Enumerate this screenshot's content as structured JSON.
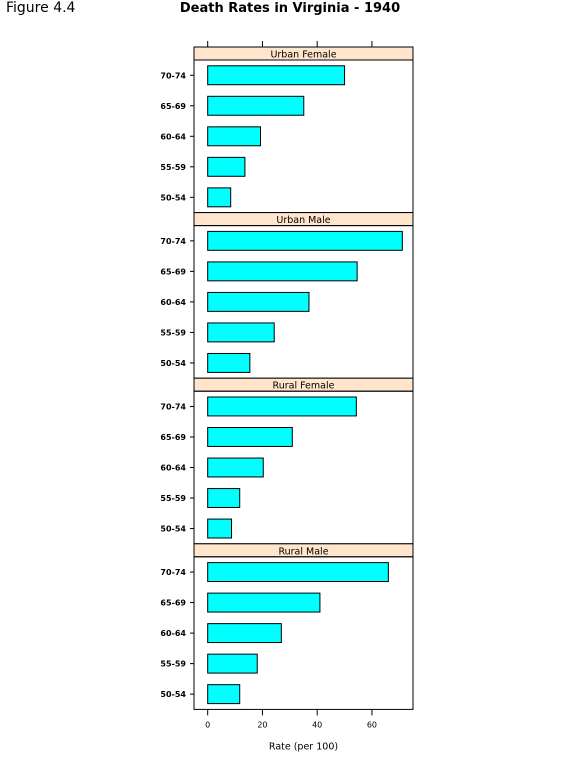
{
  "figure_label": "Figure 4.4",
  "chart_data": {
    "type": "bar",
    "orientation": "horizontal",
    "title": "Death Rates in Virginia - 1940",
    "xlabel": "Rate (per 100)",
    "ylabel": "",
    "xlim": [
      -5,
      75
    ],
    "x_ticks": [
      0,
      20,
      40,
      60
    ],
    "categories": [
      "50-54",
      "55-59",
      "60-64",
      "65-69",
      "70-74"
    ],
    "bar_color": "#00ffff",
    "strip_color": "#ffe5cc",
    "panels": [
      {
        "name": "Urban Female",
        "values": [
          8.4,
          13.6,
          19.3,
          35.1,
          50.0
        ]
      },
      {
        "name": "Urban Male",
        "values": [
          15.4,
          24.3,
          37.0,
          54.6,
          71.1
        ]
      },
      {
        "name": "Rural Female",
        "values": [
          8.7,
          11.7,
          20.3,
          30.9,
          54.3
        ]
      },
      {
        "name": "Rural Male",
        "values": [
          11.7,
          18.1,
          26.9,
          41.0,
          66.0
        ]
      }
    ]
  }
}
